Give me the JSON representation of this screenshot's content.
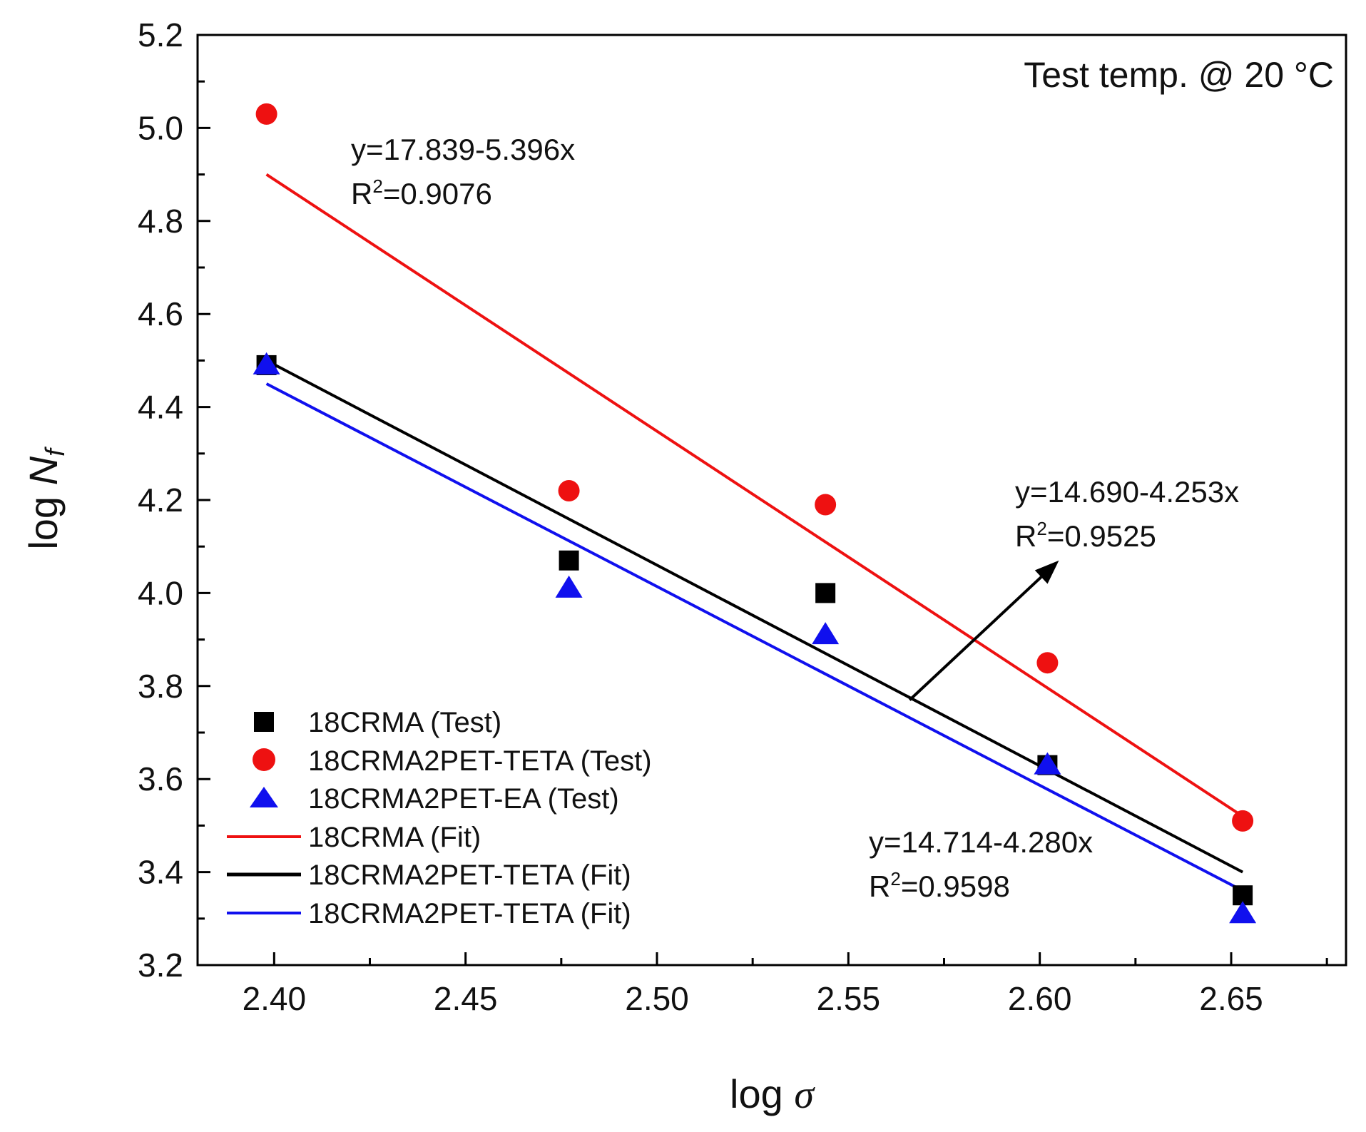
{
  "chart_data": {
    "type": "scatter",
    "title": "",
    "xlabel_prefix": "log ",
    "xlabel_symbol": "σ",
    "ylabel_prefix": "log ",
    "ylabel_symbol": "N",
    "ylabel_subscript": "f",
    "xlim": [
      2.38,
      2.68
    ],
    "ylim": [
      3.2,
      5.2
    ],
    "x_ticks": [
      "2.40",
      "2.45",
      "2.50",
      "2.55",
      "2.60",
      "2.65"
    ],
    "y_ticks": [
      "3.2",
      "3.4",
      "3.6",
      "3.8",
      "4.0",
      "4.2",
      "4.4",
      "4.6",
      "4.8",
      "5.0",
      "5.2"
    ],
    "grid": false,
    "legend_position": "bottom-left",
    "colors": {
      "black": "#000000",
      "red": "#ee1111",
      "blue": "#1010ee"
    },
    "series": [
      {
        "name": "18CRMA (Test)",
        "kind": "points",
        "marker": "square",
        "color": "#000000",
        "x": [
          2.398,
          2.477,
          2.544,
          2.602,
          2.653
        ],
        "y": [
          4.49,
          4.07,
          4.0,
          3.63,
          3.35
        ]
      },
      {
        "name": "18CRMA2PET-TETA (Test)",
        "kind": "points",
        "marker": "circle",
        "color": "#ee1111",
        "x": [
          2.398,
          2.477,
          2.544,
          2.602,
          2.653
        ],
        "y": [
          5.03,
          4.22,
          4.19,
          3.85,
          3.51
        ]
      },
      {
        "name": "18CRMA2PET-EA (Test)",
        "kind": "points",
        "marker": "triangle",
        "color": "#1010ee",
        "x": [
          2.398,
          2.477,
          2.544,
          2.602,
          2.653
        ],
        "y": [
          4.49,
          4.01,
          3.91,
          3.63,
          3.31
        ]
      },
      {
        "name": "18CRMA (Fit)",
        "kind": "line",
        "color": "#ee1111",
        "x": [
          2.398,
          2.653
        ],
        "y": [
          4.9,
          3.52
        ]
      },
      {
        "name": "18CRMA2PET-TETA (Fit)",
        "kind": "line",
        "color": "#000000",
        "x": [
          2.398,
          2.653
        ],
        "y": [
          4.5,
          3.4
        ]
      },
      {
        "name": "18CRMA2PET-TETA (Fit)",
        "kind": "line",
        "color": "#1010ee",
        "x": [
          2.398,
          2.653
        ],
        "y": [
          4.45,
          3.36
        ]
      }
    ],
    "annotations": [
      {
        "id": "temp",
        "text": "Test temp. @ 20 °C"
      },
      {
        "id": "red-eq",
        "eq": "y=17.839-5.396x",
        "r2_prefix": "R",
        "r2_sup": "2",
        "r2_value": "=0.9076"
      },
      {
        "id": "black-eq",
        "eq": "y=14.690-4.253x",
        "r2_prefix": "R",
        "r2_sup": "2",
        "r2_value": "=0.9525"
      },
      {
        "id": "blue-eq",
        "eq": "y=14.714-4.280x",
        "r2_prefix": "R",
        "r2_sup": "2",
        "r2_value": "=0.9598"
      }
    ],
    "arrow": {
      "from": [
        2.566,
        3.77
      ],
      "to": [
        2.605,
        4.07
      ]
    }
  }
}
